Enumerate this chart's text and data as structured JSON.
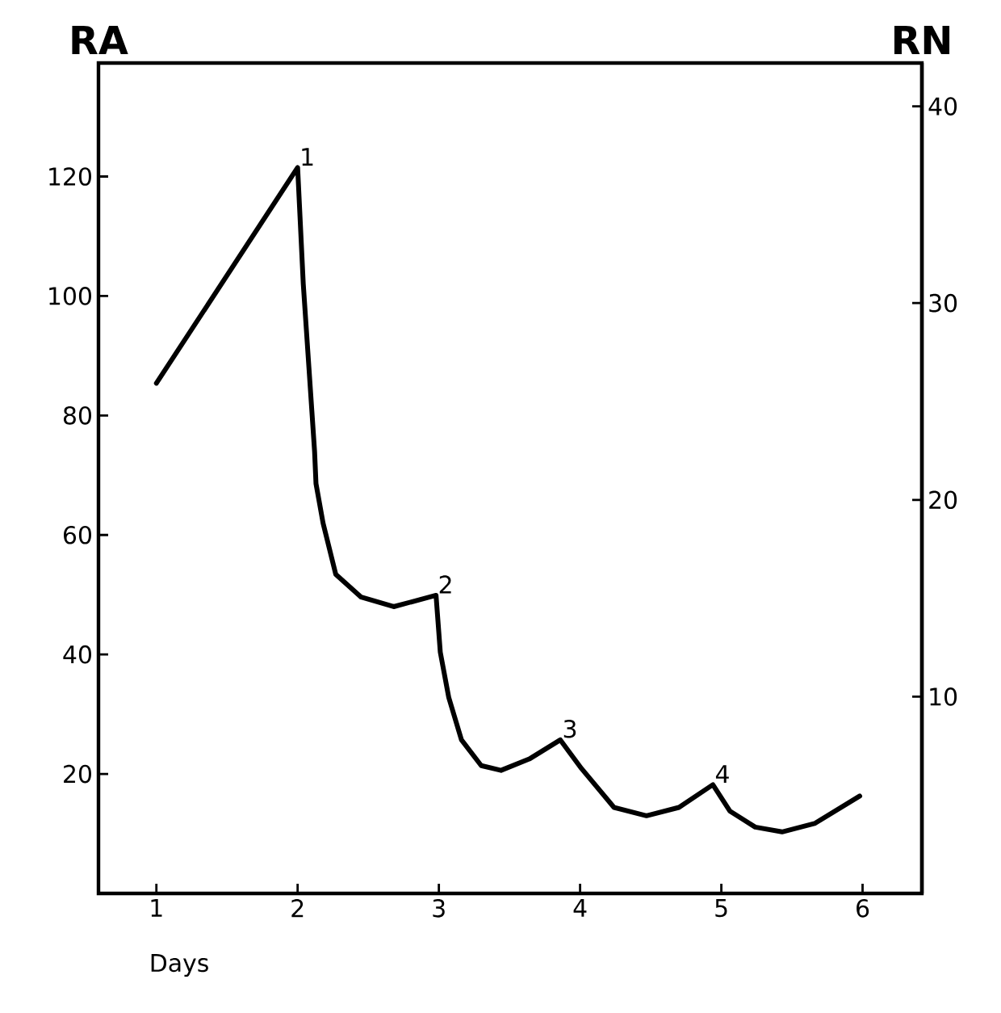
{
  "chart_data": {
    "type": "line",
    "xlabel": "Days",
    "ylabel": "RA",
    "y2label": "RN",
    "x": [
      1,
      2.0,
      2.04,
      2.08,
      2.12,
      2.13,
      2.18,
      2.27,
      2.45,
      2.68,
      2.98,
      3.01,
      3.07,
      3.16,
      3.3,
      3.44,
      3.64,
      3.86,
      4.01,
      4.24,
      4.47,
      4.7,
      4.94,
      5.06,
      5.24,
      5.43,
      5.66,
      5.98
    ],
    "series": [
      {
        "color": "#000000",
        "values": [
          85.4,
          121.5,
          102,
          88,
          74,
          68.6,
          62,
          53.4,
          49.6,
          48,
          49.9,
          40.4,
          32.8,
          25.7,
          21.4,
          20.6,
          22.5,
          25.7,
          20.9,
          14.4,
          13,
          14.4,
          18.2,
          13.8,
          11.1,
          10.3,
          11.7,
          16.3
        ]
      }
    ],
    "xlim": [
      0.59,
      6.42
    ],
    "xticks": [
      1,
      2,
      3,
      4,
      5,
      6
    ],
    "ylim": [
      0,
      139
    ],
    "yticks": [
      20,
      40,
      60,
      80,
      100,
      120
    ],
    "y2lim": [
      0,
      42.2
    ],
    "y2ticks": [
      10,
      20,
      30,
      40
    ],
    "annotations": [
      {
        "text": "1",
        "x": 2.0,
        "y": 121.5
      },
      {
        "text": "2",
        "x": 2.98,
        "y": 49.9
      },
      {
        "text": "3",
        "x": 3.86,
        "y": 25.7
      },
      {
        "text": "4",
        "x": 4.94,
        "y": 18.2
      }
    ],
    "grid": false,
    "marker": "none",
    "line_style": "solid"
  }
}
